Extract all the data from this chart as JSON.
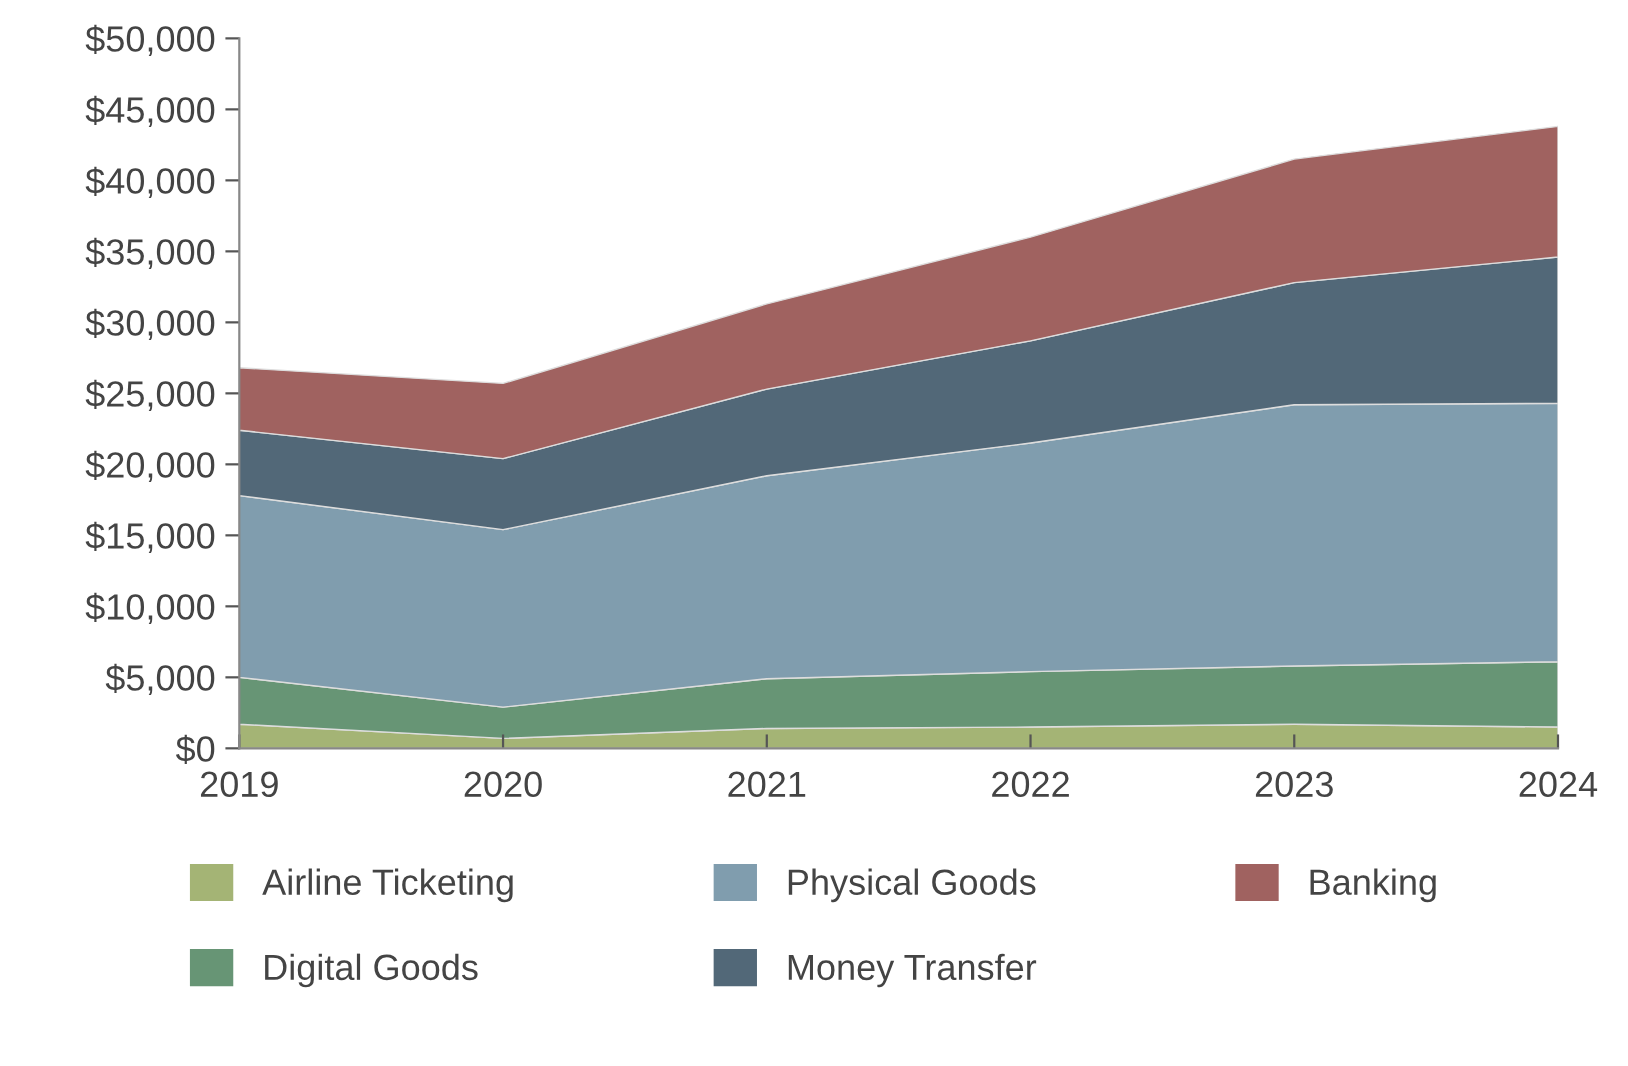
{
  "chart_data": {
    "type": "area",
    "stacked": true,
    "categories": [
      "2019",
      "2020",
      "2021",
      "2022",
      "2023",
      "2024"
    ],
    "series": [
      {
        "name": "Airline Ticketing",
        "color": "#a4b475",
        "values": [
          1700,
          700,
          1400,
          1500,
          1700,
          1500
        ]
      },
      {
        "name": "Digital Goods",
        "color": "#679575",
        "values": [
          3300,
          2200,
          3500,
          3900,
          4100,
          4600
        ]
      },
      {
        "name": "Physical Goods",
        "color": "#809dae",
        "values": [
          12800,
          12500,
          14300,
          16100,
          18400,
          18200
        ]
      },
      {
        "name": "Money Transfer",
        "color": "#526878",
        "values": [
          4600,
          5000,
          6100,
          7200,
          8600,
          10300
        ]
      },
      {
        "name": "Banking",
        "color": "#a06260",
        "values": [
          4400,
          5300,
          6000,
          7300,
          8700,
          9200
        ]
      }
    ],
    "ylim": [
      0,
      50000
    ],
    "yticks": [
      {
        "value": 0,
        "label": "$0"
      },
      {
        "value": 5000,
        "label": "$5,000"
      },
      {
        "value": 10000,
        "label": "$10,000"
      },
      {
        "value": 15000,
        "label": "$15,000"
      },
      {
        "value": 20000,
        "label": "$20,000"
      },
      {
        "value": 25000,
        "label": "$25,000"
      },
      {
        "value": 30000,
        "label": "$30,000"
      },
      {
        "value": 35000,
        "label": "$35,000"
      },
      {
        "value": 40000,
        "label": "$40,000"
      },
      {
        "value": 45000,
        "label": "$45,000"
      },
      {
        "value": 50000,
        "label": "$50,000"
      }
    ],
    "grid": false,
    "legend": "bottom"
  }
}
